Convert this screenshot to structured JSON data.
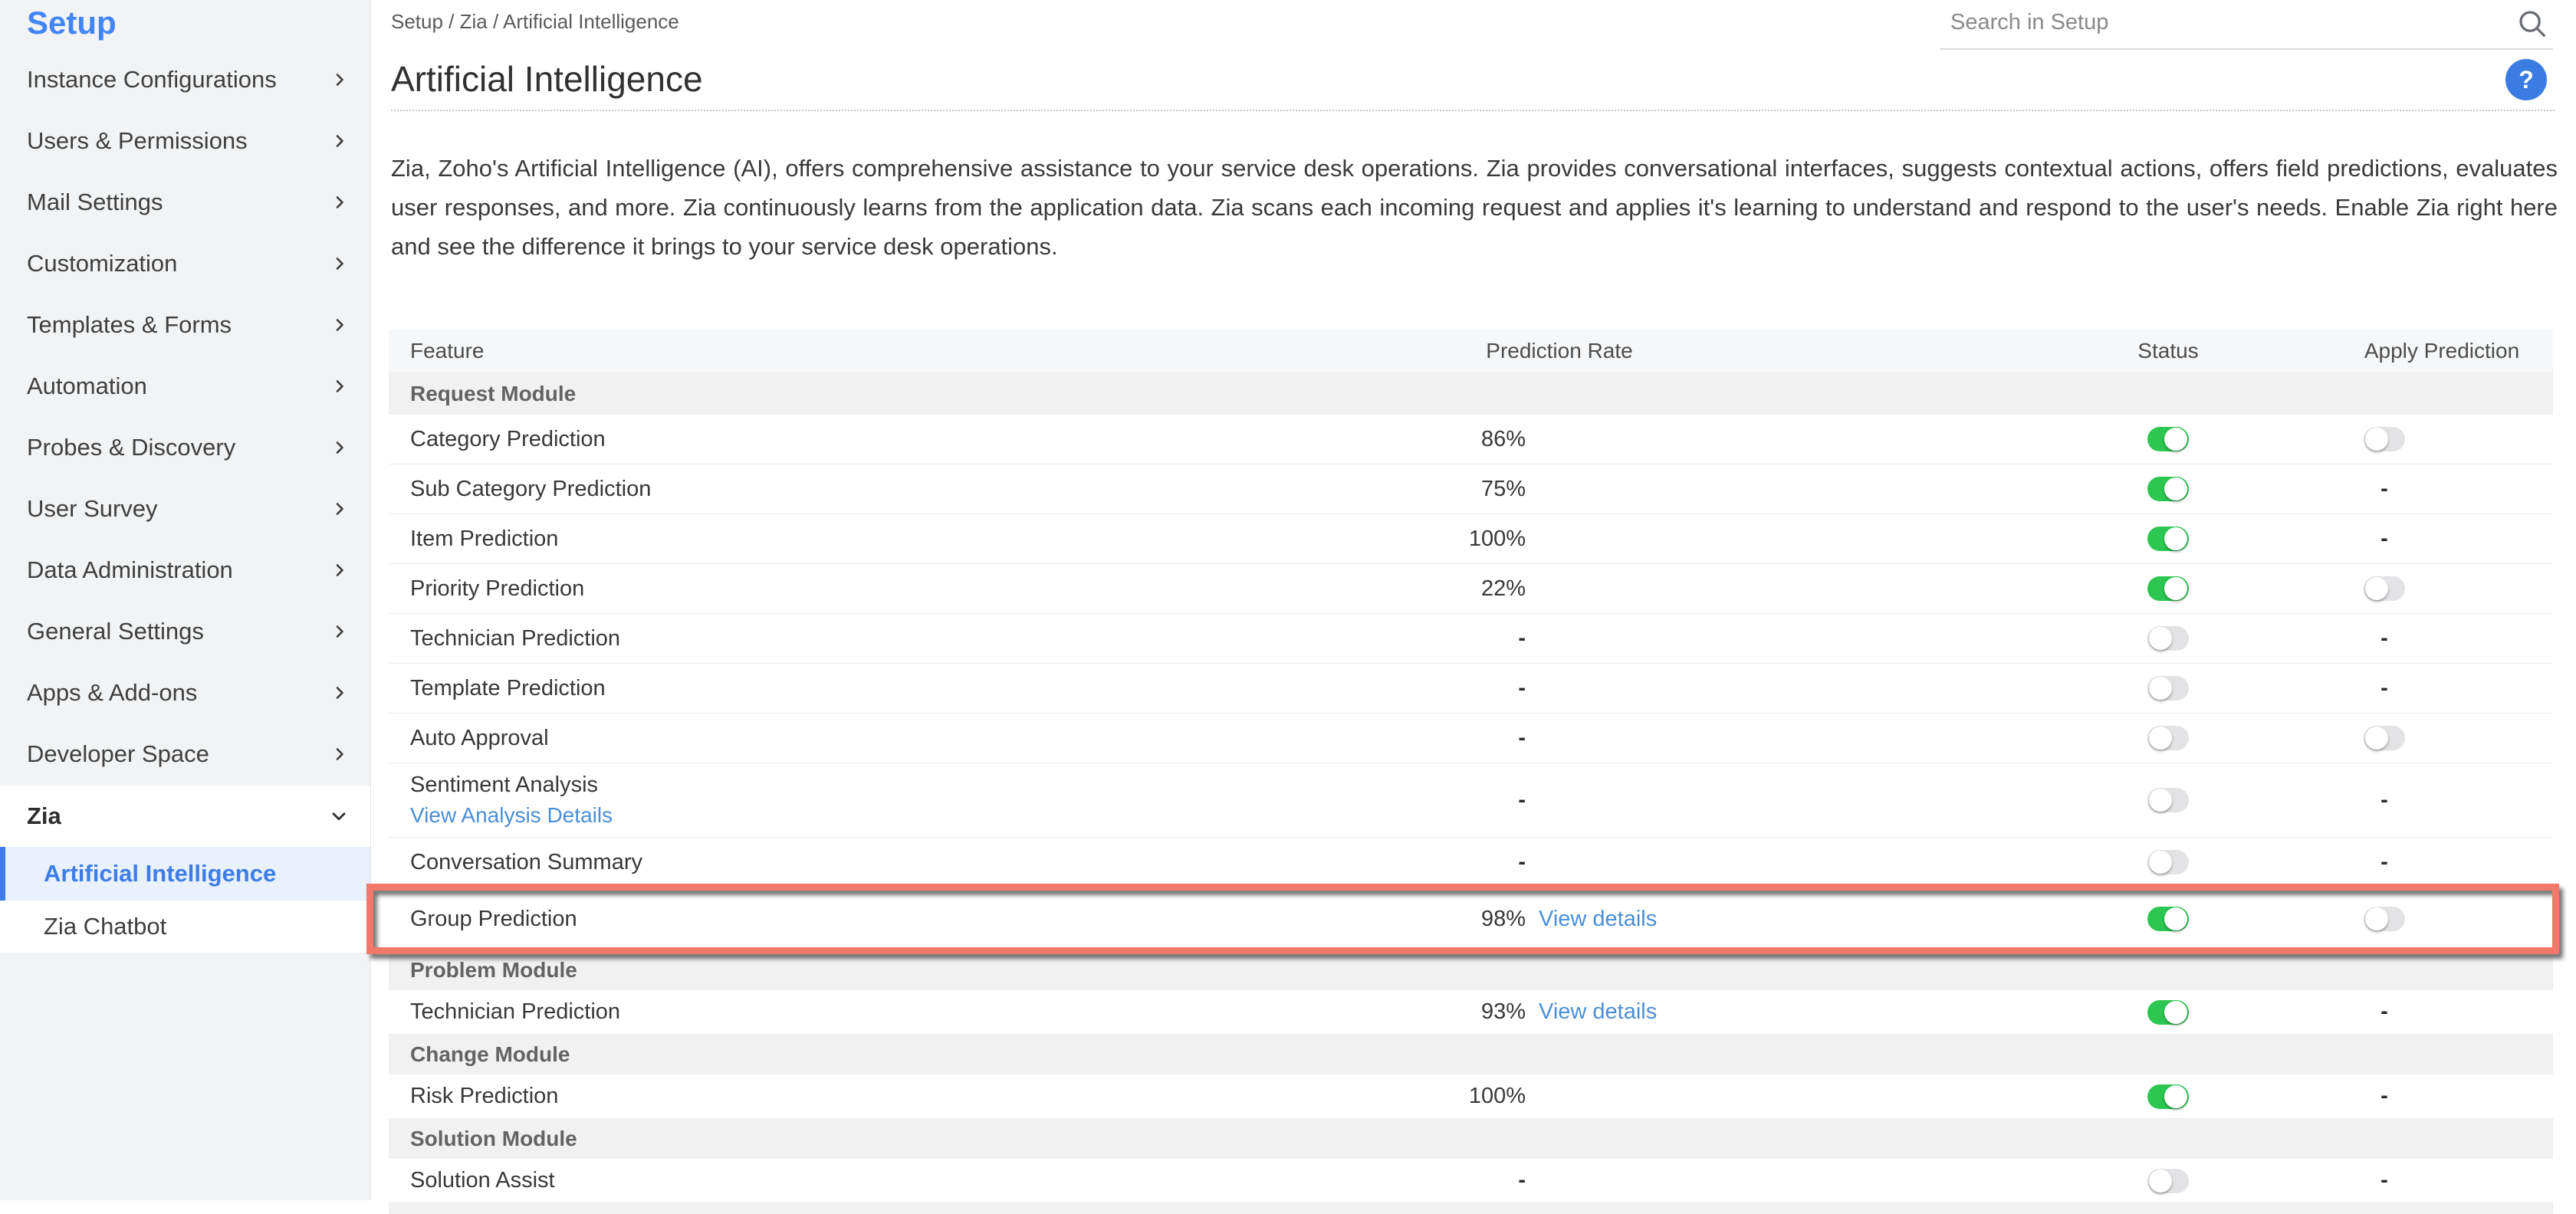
{
  "colors": {
    "accent_blue": "#4285f4",
    "active_blue": "#3e7de8",
    "link_blue": "#4a8fd6",
    "toggle_green": "#2bc751",
    "toggle_gray": "#e3e3e5",
    "highlight_red": "#f2786b",
    "help_blue": "#3b7ce2"
  },
  "sidebar": {
    "title": "Setup",
    "items": [
      "Instance Configurations",
      "Users & Permissions",
      "Mail Settings",
      "Customization",
      "Templates & Forms",
      "Automation",
      "Probes & Discovery",
      "User Survey",
      "Data Administration",
      "General Settings",
      "Apps & Add-ons",
      "Developer Space"
    ],
    "zia": {
      "label": "Zia",
      "children": [
        {
          "label": "Artificial Intelligence",
          "active": true
        },
        {
          "label": "Zia Chatbot",
          "active": false
        }
      ]
    }
  },
  "header": {
    "breadcrumb": "Setup / Zia / Artificial Intelligence",
    "search_placeholder": "Search in Setup",
    "title": "Artificial Intelligence",
    "help_label": "?"
  },
  "description": "Zia, Zoho's Artificial Intelligence (AI), offers comprehensive assistance to your service desk operations. Zia provides conversational interfaces, suggests contextual actions, offers field predictions, evaluates user responses, and more. Zia continuously learns from the application data. Zia scans each incoming request and applies it's learning to understand and respond to the user's needs. Enable Zia right here and see the difference it brings to your service desk operations.",
  "table": {
    "headers": [
      "Feature",
      "Prediction Rate",
      "Status",
      "Apply Prediction"
    ],
    "na_symbol": "-",
    "sections": [
      {
        "module": "Request Module",
        "rows": [
          {
            "feature": "Category Prediction",
            "rate": "86%",
            "status": "on",
            "apply": "off"
          },
          {
            "feature": "Sub Category Prediction",
            "rate": "75%",
            "status": "on",
            "apply": "-"
          },
          {
            "feature": "Item Prediction",
            "rate": "100%",
            "status": "on",
            "apply": "-"
          },
          {
            "feature": "Priority Prediction",
            "rate": "22%",
            "status": "on",
            "apply": "off"
          },
          {
            "feature": "Technician Prediction",
            "rate": "-",
            "status": "off",
            "apply": "-"
          },
          {
            "feature": "Template Prediction",
            "rate": "-",
            "status": "off",
            "apply": "-"
          },
          {
            "feature": "Auto Approval",
            "rate": "-",
            "status": "off",
            "apply": "off"
          },
          {
            "feature": "Sentiment Analysis",
            "sublink": "View Analysis Details",
            "rate": "-",
            "status": "off",
            "apply": "-"
          },
          {
            "feature": "Conversation Summary",
            "rate": "-",
            "status": "off",
            "apply": "-"
          },
          {
            "feature": "Group Prediction",
            "rate": "98%",
            "rate_link": "View details",
            "status": "on",
            "apply": "off",
            "highlighted": true
          }
        ]
      },
      {
        "module": "Problem Module",
        "rows": [
          {
            "feature": "Technician Prediction",
            "rate": "93%",
            "rate_link": "View details",
            "status": "on",
            "apply": "-"
          }
        ]
      },
      {
        "module": "Change Module",
        "rows": [
          {
            "feature": "Risk Prediction",
            "rate": "100%",
            "status": "on",
            "apply": "-"
          }
        ]
      },
      {
        "module": "Solution Module",
        "rows": [
          {
            "feature": "Solution Assist",
            "rate": "-",
            "status": "off",
            "apply": "-"
          }
        ]
      }
    ]
  }
}
